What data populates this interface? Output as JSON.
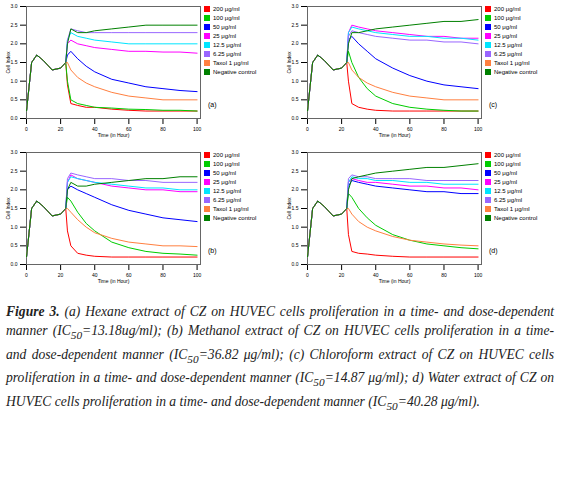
{
  "chart_data": [
    {
      "type": "line",
      "title": "(a)",
      "x_label": "Time (in Hour)",
      "y_label": "Cell Index",
      "x": [
        0,
        3,
        6,
        10,
        15,
        20,
        23,
        24,
        26,
        30,
        35,
        40,
        50,
        60,
        70,
        80,
        90,
        100
      ],
      "xlim": [
        0,
        102
      ],
      "xticks": [
        0,
        20,
        40,
        60,
        80,
        100
      ],
      "ylim": [
        0,
        3
      ],
      "yticks": [
        0,
        0.5,
        1,
        1.5,
        2,
        2.5,
        3
      ],
      "grid": false,
      "legend": "right",
      "series": [
        {
          "name": "200 μg/ml",
          "color": "#ff0000",
          "values": [
            0.2,
            1.5,
            1.7,
            1.55,
            1.3,
            1.35,
            1.5,
            0.9,
            0.4,
            0.35,
            0.3,
            0.3,
            0.25,
            0.22,
            0.2,
            0.2,
            0.2,
            0.2
          ]
        },
        {
          "name": "100 μg/ml",
          "color": "#00cc00",
          "values": [
            0.2,
            1.5,
            1.7,
            1.55,
            1.3,
            1.35,
            1.5,
            1.0,
            0.5,
            0.4,
            0.35,
            0.3,
            0.28,
            0.25,
            0.24,
            0.22,
            0.22,
            0.2
          ]
        },
        {
          "name": "50 μg/ml",
          "color": "#0000ff",
          "values": [
            0.2,
            1.5,
            1.7,
            1.55,
            1.3,
            1.35,
            1.5,
            1.7,
            1.8,
            1.6,
            1.4,
            1.25,
            1.05,
            0.95,
            0.85,
            0.8,
            0.75,
            0.72
          ]
        },
        {
          "name": "25 μg/ml",
          "color": "#ff00ff",
          "values": [
            0.2,
            1.5,
            1.7,
            1.55,
            1.3,
            1.35,
            1.5,
            2.0,
            2.1,
            2.0,
            1.95,
            1.9,
            1.85,
            1.8,
            1.8,
            1.78,
            1.78,
            1.75
          ]
        },
        {
          "name": "12.5 μg/ml",
          "color": "#00e5ff",
          "values": [
            0.2,
            1.5,
            1.7,
            1.55,
            1.3,
            1.35,
            1.5,
            2.1,
            2.3,
            2.2,
            2.15,
            2.1,
            2.05,
            2.0,
            2.0,
            2.0,
            2.0,
            2.0
          ]
        },
        {
          "name": "6.25 μg/ml",
          "color": "#9966ff",
          "values": [
            0.2,
            1.5,
            1.7,
            1.55,
            1.3,
            1.35,
            1.5,
            2.1,
            2.4,
            2.35,
            2.3,
            2.3,
            2.3,
            2.3,
            2.3,
            2.3,
            2.3,
            2.3
          ]
        },
        {
          "name": "Taxol 1 μg/ml",
          "color": "#ff8040",
          "values": [
            0.2,
            1.5,
            1.7,
            1.55,
            1.3,
            1.35,
            1.5,
            1.5,
            1.3,
            1.1,
            0.95,
            0.85,
            0.7,
            0.6,
            0.55,
            0.5,
            0.5,
            0.5
          ]
        },
        {
          "name": "Negative control",
          "color": "#008000",
          "values": [
            0.2,
            1.5,
            1.7,
            1.55,
            1.3,
            1.35,
            1.5,
            2.0,
            2.4,
            2.3,
            2.3,
            2.35,
            2.4,
            2.45,
            2.5,
            2.5,
            2.5,
            2.5
          ]
        }
      ]
    },
    {
      "type": "line",
      "title": "(b)",
      "x_label": "Time (in Hour)",
      "y_label": "Cell Index",
      "x": [
        0,
        3,
        6,
        10,
        15,
        20,
        23,
        24,
        26,
        30,
        35,
        40,
        50,
        60,
        70,
        80,
        90,
        100
      ],
      "xlim": [
        0,
        102
      ],
      "xticks": [
        0,
        20,
        40,
        60,
        80,
        100
      ],
      "ylim": [
        0,
        3
      ],
      "yticks": [
        0,
        0.5,
        1,
        1.5,
        2,
        2.5,
        3
      ],
      "grid": false,
      "legend": "right",
      "series": [
        {
          "name": "200 μg/ml",
          "color": "#ff0000",
          "values": [
            0.2,
            1.5,
            1.7,
            1.55,
            1.3,
            1.35,
            1.5,
            0.9,
            0.5,
            0.3,
            0.25,
            0.22,
            0.2,
            0.2,
            0.2,
            0.2,
            0.2,
            0.2
          ]
        },
        {
          "name": "100 μg/ml",
          "color": "#00cc00",
          "values": [
            0.2,
            1.5,
            1.7,
            1.55,
            1.3,
            1.35,
            1.5,
            1.8,
            1.7,
            1.4,
            1.1,
            0.9,
            0.6,
            0.45,
            0.35,
            0.3,
            0.28,
            0.25
          ]
        },
        {
          "name": "50 μg/ml",
          "color": "#0000ff",
          "values": [
            0.2,
            1.5,
            1.7,
            1.55,
            1.3,
            1.35,
            1.5,
            2.0,
            2.1,
            2.0,
            1.9,
            1.8,
            1.6,
            1.45,
            1.35,
            1.25,
            1.2,
            1.15
          ]
        },
        {
          "name": "25 μg/ml",
          "color": "#ff00ff",
          "values": [
            0.2,
            1.5,
            1.7,
            1.55,
            1.3,
            1.35,
            1.5,
            2.2,
            2.4,
            2.3,
            2.25,
            2.2,
            2.1,
            2.05,
            2.0,
            2.0,
            1.95,
            1.95
          ]
        },
        {
          "name": "12.5 μg/ml",
          "color": "#00e5ff",
          "values": [
            0.2,
            1.5,
            1.7,
            1.55,
            1.3,
            1.35,
            1.5,
            2.2,
            2.35,
            2.3,
            2.25,
            2.2,
            2.15,
            2.1,
            2.05,
            2.05,
            2.0,
            2.0
          ]
        },
        {
          "name": "6.25 μg/ml",
          "color": "#9966ff",
          "values": [
            0.2,
            1.5,
            1.7,
            1.55,
            1.3,
            1.35,
            1.5,
            2.3,
            2.45,
            2.4,
            2.35,
            2.3,
            2.3,
            2.25,
            2.25,
            2.2,
            2.2,
            2.2
          ]
        },
        {
          "name": "Taxol 1 μg/ml",
          "color": "#ff8040",
          "values": [
            0.2,
            1.5,
            1.7,
            1.55,
            1.3,
            1.35,
            1.5,
            1.5,
            1.4,
            1.2,
            1.0,
            0.85,
            0.7,
            0.6,
            0.55,
            0.5,
            0.5,
            0.48
          ]
        },
        {
          "name": "Negative control",
          "color": "#008000",
          "values": [
            0.2,
            1.5,
            1.7,
            1.55,
            1.3,
            1.35,
            1.5,
            2.0,
            2.2,
            2.1,
            2.1,
            2.15,
            2.2,
            2.25,
            2.3,
            2.3,
            2.35,
            2.35
          ]
        }
      ]
    },
    {
      "type": "line",
      "title": "(c)",
      "x_label": "Time (in Hour)",
      "y_label": "Cell Index",
      "x": [
        0,
        3,
        6,
        10,
        15,
        20,
        23,
        24,
        26,
        30,
        35,
        40,
        50,
        60,
        70,
        80,
        90,
        100
      ],
      "xlim": [
        0,
        102
      ],
      "xticks": [
        0,
        20,
        40,
        60,
        80,
        100
      ],
      "ylim": [
        0,
        3
      ],
      "yticks": [
        0,
        0.5,
        1,
        1.5,
        2,
        2.5,
        3
      ],
      "grid": false,
      "legend": "right",
      "series": [
        {
          "name": "200 μg/ml",
          "color": "#ff0000",
          "values": [
            0.2,
            1.5,
            1.7,
            1.55,
            1.3,
            1.35,
            1.5,
            1.0,
            0.4,
            0.3,
            0.25,
            0.22,
            0.2,
            0.2,
            0.2,
            0.2,
            0.2,
            0.2
          ]
        },
        {
          "name": "100 μg/ml",
          "color": "#00cc00",
          "values": [
            0.2,
            1.5,
            1.7,
            1.55,
            1.3,
            1.35,
            1.5,
            1.8,
            1.5,
            1.1,
            0.8,
            0.6,
            0.4,
            0.3,
            0.25,
            0.22,
            0.2,
            0.2
          ]
        },
        {
          "name": "50 μg/ml",
          "color": "#0000ff",
          "values": [
            0.2,
            1.5,
            1.7,
            1.55,
            1.3,
            1.35,
            1.5,
            2.1,
            2.2,
            2.0,
            1.8,
            1.6,
            1.35,
            1.15,
            1.0,
            0.9,
            0.85,
            0.8
          ]
        },
        {
          "name": "25 μg/ml",
          "color": "#ff00ff",
          "values": [
            0.2,
            1.5,
            1.7,
            1.55,
            1.3,
            1.35,
            1.5,
            2.3,
            2.5,
            2.45,
            2.4,
            2.35,
            2.3,
            2.25,
            2.2,
            2.2,
            2.15,
            2.15
          ]
        },
        {
          "name": "12.5 μg/ml",
          "color": "#00e5ff",
          "values": [
            0.2,
            1.5,
            1.7,
            1.55,
            1.3,
            1.35,
            1.5,
            2.3,
            2.45,
            2.4,
            2.35,
            2.3,
            2.25,
            2.2,
            2.2,
            2.15,
            2.15,
            2.1
          ]
        },
        {
          "name": "6.25 μg/ml",
          "color": "#9966ff",
          "values": [
            0.2,
            1.5,
            1.7,
            1.55,
            1.3,
            1.35,
            1.5,
            2.2,
            2.35,
            2.3,
            2.25,
            2.2,
            2.15,
            2.1,
            2.1,
            2.05,
            2.05,
            2.0
          ]
        },
        {
          "name": "Taxol 1 μg/ml",
          "color": "#ff8040",
          "values": [
            0.2,
            1.5,
            1.7,
            1.55,
            1.3,
            1.35,
            1.5,
            1.5,
            1.3,
            1.1,
            0.95,
            0.85,
            0.7,
            0.6,
            0.55,
            0.5,
            0.5,
            0.5
          ]
        },
        {
          "name": "Negative control",
          "color": "#008000",
          "values": [
            0.2,
            1.5,
            1.7,
            1.55,
            1.3,
            1.35,
            1.5,
            2.0,
            2.3,
            2.3,
            2.35,
            2.4,
            2.45,
            2.5,
            2.55,
            2.6,
            2.6,
            2.65
          ]
        }
      ]
    },
    {
      "type": "line",
      "title": "(d)",
      "x_label": "Time (in Hour)",
      "y_label": "Cell Index",
      "x": [
        0,
        3,
        6,
        10,
        15,
        20,
        23,
        24,
        26,
        30,
        35,
        40,
        50,
        60,
        70,
        80,
        90,
        100
      ],
      "xlim": [
        0,
        102
      ],
      "xticks": [
        0,
        20,
        40,
        60,
        80,
        100
      ],
      "ylim": [
        0,
        3
      ],
      "yticks": [
        0,
        0.5,
        1,
        1.5,
        2,
        2.5,
        3
      ],
      "grid": false,
      "legend": "right",
      "series": [
        {
          "name": "200 μg/ml",
          "color": "#ff0000",
          "values": [
            0.2,
            1.5,
            1.7,
            1.55,
            1.3,
            1.35,
            1.5,
            0.8,
            0.35,
            0.3,
            0.28,
            0.25,
            0.22,
            0.2,
            0.2,
            0.2,
            0.2,
            0.2
          ]
        },
        {
          "name": "100 μg/ml",
          "color": "#00cc00",
          "values": [
            0.2,
            1.5,
            1.7,
            1.55,
            1.3,
            1.35,
            1.5,
            1.9,
            1.8,
            1.5,
            1.25,
            1.05,
            0.8,
            0.65,
            0.55,
            0.5,
            0.45,
            0.42
          ]
        },
        {
          "name": "50 μg/ml",
          "color": "#0000ff",
          "values": [
            0.2,
            1.5,
            1.7,
            1.55,
            1.3,
            1.35,
            1.5,
            2.1,
            2.25,
            2.2,
            2.15,
            2.1,
            2.05,
            2.0,
            1.95,
            1.95,
            1.9,
            1.9
          ]
        },
        {
          "name": "25 μg/ml",
          "color": "#ff00ff",
          "values": [
            0.2,
            1.5,
            1.7,
            1.55,
            1.3,
            1.35,
            1.5,
            2.2,
            2.3,
            2.25,
            2.2,
            2.2,
            2.15,
            2.1,
            2.1,
            2.05,
            2.05,
            2.0
          ]
        },
        {
          "name": "12.5 μg/ml",
          "color": "#00e5ff",
          "values": [
            0.2,
            1.5,
            1.7,
            1.55,
            1.3,
            1.35,
            1.5,
            2.2,
            2.35,
            2.3,
            2.3,
            2.25,
            2.25,
            2.2,
            2.2,
            2.15,
            2.15,
            2.15
          ]
        },
        {
          "name": "6.25 μg/ml",
          "color": "#9966ff",
          "values": [
            0.2,
            1.5,
            1.7,
            1.55,
            1.3,
            1.35,
            1.5,
            2.3,
            2.4,
            2.35,
            2.35,
            2.3,
            2.3,
            2.3,
            2.25,
            2.25,
            2.25,
            2.25
          ]
        },
        {
          "name": "Taxol 1 μg/ml",
          "color": "#ff8040",
          "values": [
            0.2,
            1.5,
            1.7,
            1.55,
            1.3,
            1.35,
            1.5,
            1.5,
            1.35,
            1.15,
            1.0,
            0.9,
            0.75,
            0.65,
            0.6,
            0.55,
            0.52,
            0.5
          ]
        },
        {
          "name": "Negative control",
          "color": "#008000",
          "values": [
            0.2,
            1.5,
            1.7,
            1.55,
            1.3,
            1.35,
            1.5,
            2.0,
            2.3,
            2.35,
            2.4,
            2.45,
            2.5,
            2.55,
            2.6,
            2.6,
            2.65,
            2.7
          ]
        }
      ]
    }
  ],
  "caption": {
    "label": "Figure 3.",
    "segments": [
      {
        "text": " (a) Hexane extract of CZ on HUVEC cells proliferation in a time- and dose-dependent manner (IC",
        "sub": false
      },
      {
        "text": "50",
        "sub": true
      },
      {
        "text": "=13.18ug/ml); (b) Methanol extract of CZ on HUVEC cells proliferation in a time- and dose-dependent manner (IC",
        "sub": false
      },
      {
        "text": "50",
        "sub": true
      },
      {
        "text": "=36.82 μg/ml); (c) Chloroform extract of CZ on HUVEC cells proliferation in a time- and dose-dependent manner (IC",
        "sub": false
      },
      {
        "text": "50",
        "sub": true
      },
      {
        "text": "=14.87 μg/ml); d) Water extract of CZ on HUVEC cells proliferation in a time- and dose-dependent manner (IC",
        "sub": false
      },
      {
        "text": "50",
        "sub": true
      },
      {
        "text": "=40.28 μg/ml).",
        "sub": false
      }
    ]
  }
}
